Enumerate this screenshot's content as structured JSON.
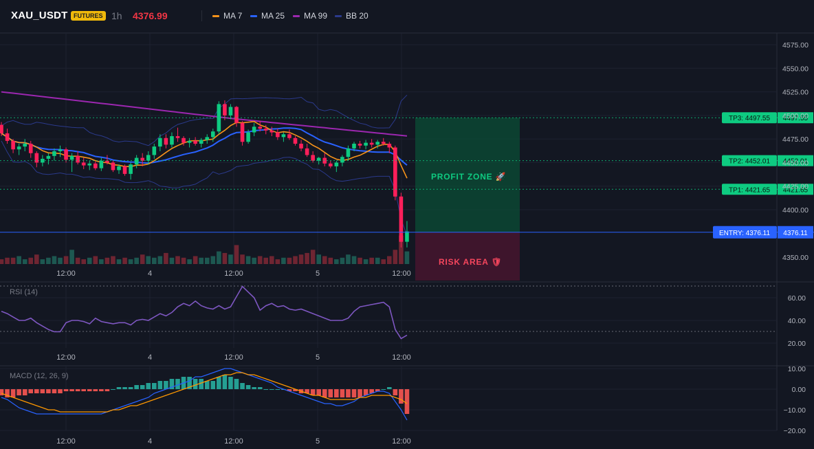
{
  "header": {
    "symbol": "XAU_USDT",
    "badge": "FUTURES",
    "timeframe": "1h",
    "last_price": "4376.99"
  },
  "legend": [
    {
      "label": "MA 7",
      "color": "#f7931a"
    },
    {
      "label": "MA 25",
      "color": "#2962ff"
    },
    {
      "label": "MA 99",
      "color": "#9c27b0"
    },
    {
      "label": "BB 20",
      "color": "#2b3a8c"
    }
  ],
  "colors": {
    "up": "#26a69a",
    "up_bright": "#0ecb81",
    "down": "#f6465d",
    "down_bright": "#ff1f5a",
    "ma7": "#f7931a",
    "ma25": "#2962ff",
    "ma99": "#9c27b0",
    "bb": "#2b3a8c",
    "rsi": "#7e57c2",
    "macd": "#2962ff",
    "signal": "#ff9800",
    "tp": "#0ecb81",
    "entry": "#2962ff"
  },
  "price_axis": [
    "4575.00",
    "4550.00",
    "4525.00",
    "4500.00",
    "4475.00",
    "4450.00",
    "4425.00",
    "4400.00",
    "4350.00"
  ],
  "levels": [
    {
      "tag": "TP3: 4497.55",
      "value": "4497.55",
      "price": 4497.55
    },
    {
      "tag": "TP2: 4452.01",
      "value": "4452.01",
      "price": 4452.01
    },
    {
      "tag": "TP1: 4421.65",
      "value": "4421.65",
      "price": 4421.65
    }
  ],
  "entry": {
    "tag": "ENTRY: 4376.11",
    "value": "4376.11",
    "price": 4376.11
  },
  "zones": {
    "profit_label": "PROFIT ZONE 🚀",
    "risk_label": "RISK AREA 🛡"
  },
  "time_axis": [
    "12:00",
    "4",
    "12:00",
    "5",
    "12:00"
  ],
  "rsi": {
    "label": "RSI (14)",
    "axis": [
      "60.00",
      "40.00",
      "20.00"
    ],
    "upper": 70,
    "lower": 30
  },
  "macd": {
    "label": "MACD (12, 26, 9)",
    "axis": [
      "10.00",
      "0.00",
      "−10.00",
      "−20.00"
    ]
  },
  "chart_data": {
    "type": "candlestick",
    "candles": [
      [
        4490,
        4493,
        4478,
        4481
      ],
      [
        4481,
        4486,
        4470,
        4473
      ],
      [
        4473,
        4475,
        4460,
        4464
      ],
      [
        4464,
        4470,
        4458,
        4467
      ],
      [
        4467,
        4475,
        4462,
        4470
      ],
      [
        4470,
        4473,
        4455,
        4460
      ],
      [
        4460,
        4462,
        4445,
        4450
      ],
      [
        4450,
        4458,
        4446,
        4454
      ],
      [
        4454,
        4460,
        4448,
        4457
      ],
      [
        4457,
        4465,
        4452,
        4462
      ],
      [
        4462,
        4468,
        4456,
        4464
      ],
      [
        4464,
        4466,
        4450,
        4453
      ],
      [
        4453,
        4460,
        4440,
        4457
      ],
      [
        4457,
        4462,
        4448,
        4450
      ],
      [
        4450,
        4455,
        4443,
        4447
      ],
      [
        4447,
        4452,
        4442,
        4449
      ],
      [
        4449,
        4451,
        4442,
        4444
      ],
      [
        4444,
        4455,
        4441,
        4452
      ],
      [
        4452,
        4458,
        4448,
        4450
      ],
      [
        4450,
        4452,
        4440,
        4442
      ],
      [
        4442,
        4448,
        4438,
        4446
      ],
      [
        4446,
        4448,
        4436,
        4438
      ],
      [
        4438,
        4450,
        4432,
        4448
      ],
      [
        4448,
        4458,
        4444,
        4455
      ],
      [
        4455,
        4460,
        4446,
        4452
      ],
      [
        4452,
        4462,
        4448,
        4458
      ],
      [
        4458,
        4470,
        4454,
        4467
      ],
      [
        4467,
        4480,
        4462,
        4476
      ],
      [
        4476,
        4480,
        4465,
        4469
      ],
      [
        4469,
        4482,
        4466,
        4478
      ],
      [
        4478,
        4487,
        4472,
        4476
      ],
      [
        4476,
        4478,
        4468,
        4471
      ],
      [
        4471,
        4476,
        4466,
        4473
      ],
      [
        4473,
        4477,
        4468,
        4470
      ],
      [
        4470,
        4476,
        4466,
        4474
      ],
      [
        4474,
        4480,
        4470,
        4477
      ],
      [
        4477,
        4486,
        4472,
        4483
      ],
      [
        4483,
        4515,
        4480,
        4512
      ],
      [
        4512,
        4516,
        4495,
        4500
      ],
      [
        4500,
        4512,
        4496,
        4509
      ],
      [
        4509,
        4510,
        4488,
        4492
      ],
      [
        4492,
        4494,
        4468,
        4472
      ],
      [
        4472,
        4485,
        4470,
        4482
      ],
      [
        4482,
        4492,
        4478,
        4488
      ],
      [
        4488,
        4494,
        4483,
        4486
      ],
      [
        4486,
        4490,
        4480,
        4484
      ],
      [
        4484,
        4488,
        4478,
        4482
      ],
      [
        4482,
        4486,
        4474,
        4477
      ],
      [
        4477,
        4482,
        4472,
        4480
      ],
      [
        4480,
        4485,
        4474,
        4476
      ],
      [
        4476,
        4478,
        4468,
        4470
      ],
      [
        4470,
        4474,
        4462,
        4465
      ],
      [
        4465,
        4470,
        4456,
        4458
      ],
      [
        4458,
        4462,
        4450,
        4452
      ],
      [
        4452,
        4456,
        4448,
        4455
      ],
      [
        4455,
        4460,
        4446,
        4449
      ],
      [
        4449,
        4452,
        4444,
        4446
      ],
      [
        4446,
        4452,
        4440,
        4450
      ],
      [
        4450,
        4458,
        4446,
        4456
      ],
      [
        4456,
        4468,
        4452,
        4465
      ],
      [
        4465,
        4472,
        4462,
        4470
      ],
      [
        4470,
        4473,
        4465,
        4468
      ],
      [
        4468,
        4474,
        4464,
        4471
      ],
      [
        4471,
        4475,
        4466,
        4469
      ],
      [
        4469,
        4474,
        4465,
        4472
      ],
      [
        4472,
        4476,
        4468,
        4470
      ],
      [
        4470,
        4472,
        4460,
        4466
      ],
      [
        4466,
        4468,
        4410,
        4414
      ],
      [
        4414,
        4418,
        4360,
        4366
      ],
      [
        4366,
        4388,
        4360,
        4376.99
      ]
    ],
    "volume": [
      3,
      4,
      4,
      5,
      3,
      4,
      6,
      3,
      4,
      5,
      4,
      5,
      9,
      4,
      3,
      4,
      5,
      3,
      4,
      5,
      3,
      4,
      3,
      4,
      6,
      5,
      4,
      5,
      7,
      4,
      5,
      4,
      3,
      5,
      4,
      4,
      5,
      8,
      7,
      6,
      12,
      6,
      5,
      4,
      5,
      4,
      5,
      3,
      4,
      4,
      5,
      6,
      7,
      9,
      6,
      5,
      4,
      3,
      4,
      6,
      5,
      4,
      3,
      4,
      4,
      3,
      5,
      9,
      18,
      8
    ],
    "rsi_values": [
      48,
      46,
      43,
      40,
      40,
      42,
      38,
      35,
      32,
      30,
      30,
      38,
      40,
      40,
      39,
      37,
      42,
      39,
      38,
      37,
      38,
      38,
      36,
      40,
      41,
      40,
      43,
      46,
      44,
      47,
      52,
      55,
      53,
      57,
      53,
      51,
      50,
      53,
      50,
      52,
      61,
      70,
      65,
      60,
      49,
      53,
      55,
      52,
      53,
      50,
      49,
      50,
      48,
      46,
      44,
      42,
      40,
      40,
      40,
      42,
      48,
      52,
      53,
      54,
      55,
      56,
      52,
      32,
      24,
      27
    ],
    "macd_hist": [
      -3,
      -4,
      -4,
      -3,
      -3,
      -2,
      -2,
      -2,
      -2,
      -2,
      -2,
      -1,
      -1,
      -1,
      -1,
      -1,
      -1,
      -1,
      -1,
      0,
      1,
      1,
      1,
      2,
      2,
      3,
      3,
      4,
      4,
      5,
      5,
      6,
      6,
      5,
      5,
      4,
      4,
      6,
      7,
      6,
      5,
      3,
      2,
      1,
      1,
      0,
      0,
      0,
      0,
      -1,
      -1,
      -2,
      -2,
      -3,
      -3,
      -4,
      -4,
      -4,
      -4,
      -4,
      -4,
      -4,
      -3,
      -2,
      -1,
      0,
      1,
      -3,
      -7,
      -12
    ],
    "macd_line": [
      -4,
      -5,
      -7,
      -9,
      -10,
      -11,
      -12,
      -12,
      -12,
      -12,
      -12,
      -12,
      -12,
      -12,
      -12,
      -12,
      -12,
      -12,
      -11,
      -10,
      -9,
      -8,
      -7,
      -6,
      -5,
      -4,
      -2,
      -1,
      0,
      1,
      2,
      3,
      4,
      6,
      6,
      7,
      8,
      9,
      10,
      10,
      9,
      8,
      7,
      6,
      5,
      4,
      3,
      1,
      0,
      -1,
      -2,
      -3,
      -4,
      -5,
      -6,
      -7,
      -7,
      -8,
      -8,
      -7,
      -6,
      -4,
      -3,
      -2,
      -1,
      -1,
      -2,
      -6,
      -10,
      -15
    ],
    "signal_line": [
      -2,
      -3,
      -4,
      -5,
      -6,
      -7,
      -8,
      -9,
      -10,
      -10,
      -11,
      -11,
      -11,
      -11,
      -11,
      -11,
      -11,
      -11,
      -11,
      -10,
      -10,
      -9,
      -8,
      -8,
      -7,
      -6,
      -5,
      -4,
      -3,
      -2,
      -1,
      0,
      1,
      2,
      3,
      4,
      5,
      6,
      7,
      7,
      8,
      8,
      7,
      7,
      6,
      5,
      4,
      3,
      2,
      1,
      0,
      -1,
      -2,
      -3,
      -3,
      -4,
      -5,
      -5,
      -5,
      -5,
      -5,
      -4,
      -4,
      -3,
      -3,
      -3,
      -3,
      -4,
      -5,
      -7
    ]
  }
}
